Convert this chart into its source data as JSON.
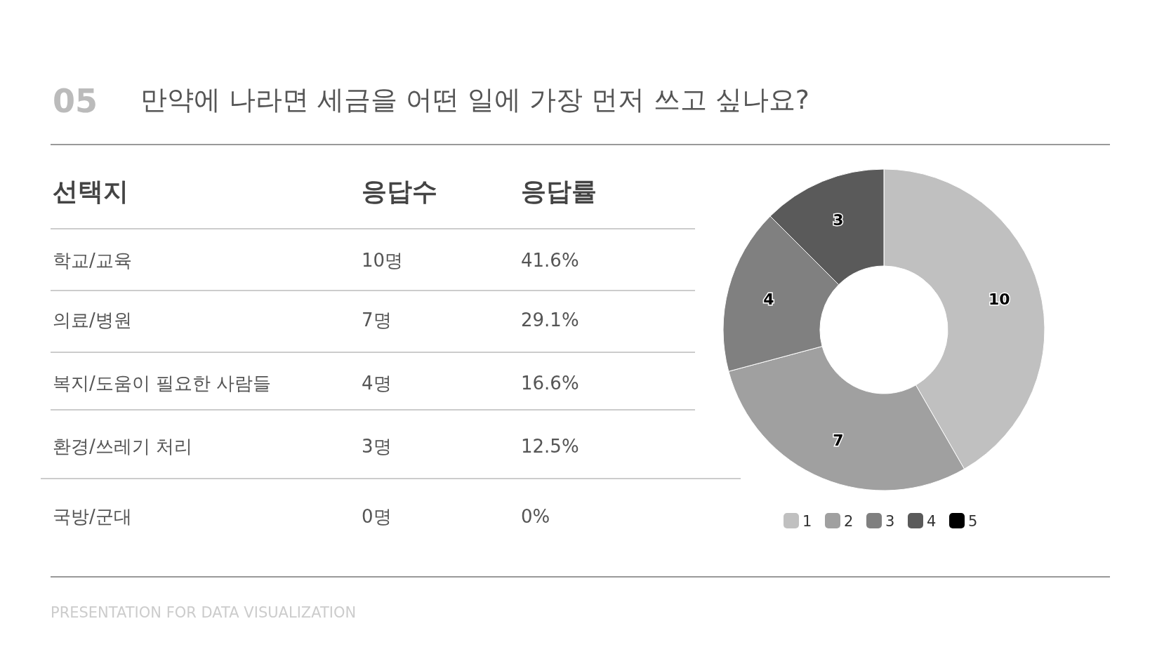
{
  "chart_data": [
    {
      "type": "other",
      "title": "05",
      "subtitle": "만약에 나라면 세금을 어떤 일에 가장 먼저 쓰고 싶나요?",
      "annotations": [
        "선택지",
        "응답수",
        "응답률",
        "학교/교육",
        "10명",
        "41.6%",
        "의료/병원",
        "7명",
        "29.1%",
        "복지/도움이 필요한 사람들",
        "4명",
        "16.6%",
        "환경/쓰레기 처리",
        "3명",
        "12.5%",
        "국방/군대",
        "0명",
        "0%",
        "PRESENTATION FOR DATA VISUALIZATION"
      ]
    },
    {
      "type": "donut",
      "categories": [
        "1",
        "2",
        "3",
        "4",
        "5"
      ],
      "values": [
        10,
        7,
        4,
        3,
        0
      ],
      "colors": [
        "#c0c0c0",
        "#a0a0a0",
        "#808080",
        "#5a5a5a",
        "#000000"
      ],
      "value_labels": [
        "10",
        "7",
        "4",
        "3",
        null
      ],
      "legend": "bottom"
    }
  ]
}
